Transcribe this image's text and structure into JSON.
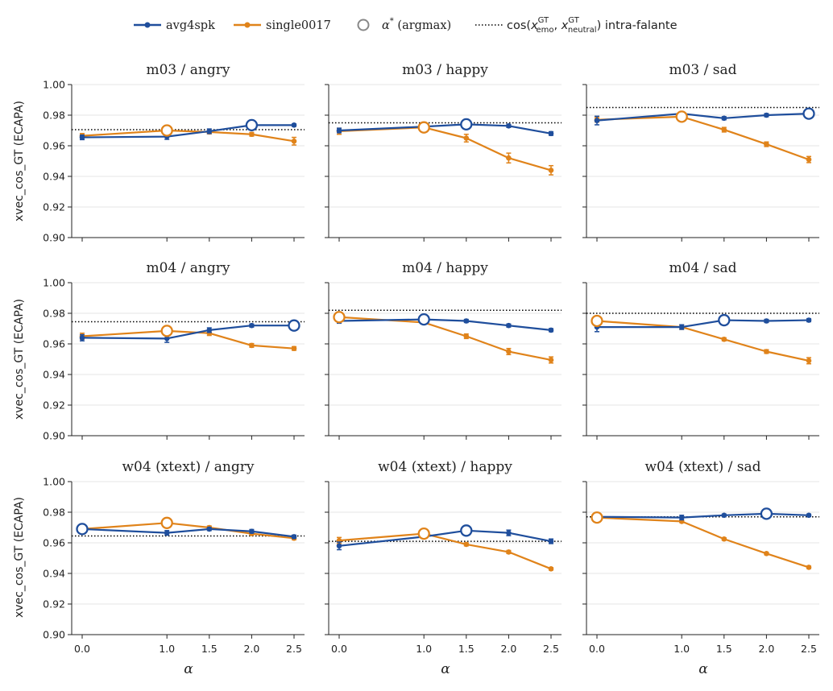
{
  "colors": {
    "avg4spk": "#1f4e9c",
    "single0017": "#e0831a",
    "argmax_legend": "#888888",
    "reference": "#000000",
    "grid": "#e6e6e6"
  },
  "legend": {
    "avg4spk": "avg4spk",
    "single0017": "single0017",
    "argmax_alpha": "α",
    "argmax_star": "*",
    "argmax_rest": " (argmax)",
    "ref_cos": "cos(",
    "ref_x1": "x",
    "ref_emo": "emo",
    "ref_gt1": "GT",
    "ref_sep": ", ",
    "ref_x2": "x",
    "ref_neutral": "neutral",
    "ref_gt2": "GT",
    "ref_end": ") intra-falante"
  },
  "chart_data": {
    "type": "line",
    "ylabel": "xvec_cos_GT (ECAPA)",
    "xlabel": "α",
    "x": [
      0.0,
      1.0,
      1.5,
      2.0,
      2.5
    ],
    "x_tick_labels": [
      "0.0",
      "1.0",
      "1.5",
      "2.0",
      "2.5"
    ],
    "ylim": [
      0.9,
      1.0
    ],
    "y_ticks": [
      0.9,
      0.92,
      0.94,
      0.96,
      0.98,
      1.0
    ],
    "y_tick_labels": [
      "0.90",
      "0.92",
      "0.94",
      "0.96",
      "0.98",
      "1.00"
    ],
    "grid": "horizontal",
    "legend_position": "top-center",
    "series_names": [
      "avg4spk",
      "single0017"
    ],
    "panels": [
      {
        "title": "m03 / angry",
        "reference": 0.9705,
        "avg4spk": [
          0.9655,
          0.966,
          0.9695,
          0.9735,
          0.9735
        ],
        "avg4spk_err": [
          0.0015,
          0.0018,
          0.0015,
          0.001,
          0.0008
        ],
        "single0017": [
          0.9665,
          0.97,
          0.969,
          0.9675,
          0.963
        ],
        "single0017_err": [
          0.0015,
          0.0012,
          0.0012,
          0.0012,
          0.0025
        ],
        "argmax": {
          "avg4spk": 3,
          "single0017": 1
        }
      },
      {
        "title": "m03 / happy",
        "reference": 0.975,
        "avg4spk": [
          0.97,
          0.9725,
          0.974,
          0.973,
          0.968
        ],
        "avg4spk_err": [
          0.0015,
          0.001,
          0.001,
          0.001,
          0.0012
        ],
        "single0017": [
          0.9695,
          0.972,
          0.965,
          0.952,
          0.944
        ],
        "single0017_err": [
          0.002,
          0.0015,
          0.0025,
          0.0032,
          0.003
        ],
        "argmax": {
          "avg4spk": 2,
          "single0017": 1
        }
      },
      {
        "title": "m03 / sad",
        "reference": 0.985,
        "avg4spk": [
          0.9765,
          0.981,
          0.978,
          0.98,
          0.981
        ],
        "avg4spk_err": [
          0.0028,
          0.001,
          0.001,
          0.001,
          0.001
        ],
        "single0017": [
          0.977,
          0.979,
          0.9705,
          0.961,
          0.951
        ],
        "single0017_err": [
          0.0015,
          0.0015,
          0.0015,
          0.0015,
          0.002
        ],
        "argmax": {
          "avg4spk": 4,
          "single0017": 1
        }
      },
      {
        "title": "m04 / angry",
        "reference": 0.9745,
        "avg4spk": [
          0.964,
          0.9635,
          0.969,
          0.972,
          0.972
        ],
        "avg4spk_err": [
          0.002,
          0.0025,
          0.0015,
          0.001,
          0.0008
        ],
        "single0017": [
          0.965,
          0.9685,
          0.967,
          0.959,
          0.957
        ],
        "single0017_err": [
          0.002,
          0.0015,
          0.0015,
          0.0012,
          0.0012
        ],
        "argmax": {
          "avg4spk": 4,
          "single0017": 1
        }
      },
      {
        "title": "m04 / happy",
        "reference": 0.982,
        "avg4spk": [
          0.975,
          0.976,
          0.975,
          0.972,
          0.969
        ],
        "avg4spk_err": [
          0.0015,
          0.001,
          0.001,
          0.001,
          0.001
        ],
        "single0017": [
          0.9775,
          0.974,
          0.965,
          0.955,
          0.9495
        ],
        "single0017_err": [
          0.001,
          0.001,
          0.0015,
          0.002,
          0.002
        ],
        "argmax": {
          "avg4spk": 1,
          "single0017": 0
        }
      },
      {
        "title": "m04 / sad",
        "reference": 0.98,
        "avg4spk": [
          0.971,
          0.971,
          0.9755,
          0.975,
          0.9755
        ],
        "avg4spk_err": [
          0.003,
          0.0015,
          0.001,
          0.001,
          0.001
        ],
        "single0017": [
          0.975,
          0.971,
          0.963,
          0.955,
          0.949
        ],
        "single0017_err": [
          0.0015,
          0.0015,
          0.001,
          0.0012,
          0.002
        ],
        "argmax": {
          "avg4spk": 2,
          "single0017": 0
        }
      },
      {
        "title": "w04 (xtext) / angry",
        "reference": 0.9645,
        "avg4spk": [
          0.969,
          0.9665,
          0.969,
          0.9675,
          0.964
        ],
        "avg4spk_err": [
          0.001,
          0.0015,
          0.001,
          0.0012,
          0.001
        ],
        "single0017": [
          0.969,
          0.973,
          0.97,
          0.966,
          0.963
        ],
        "single0017_err": [
          0.001,
          0.001,
          0.001,
          0.001,
          0.001
        ],
        "argmax": {
          "avg4spk": 0,
          "single0017": 1
        }
      },
      {
        "title": "w04 (xtext) / happy",
        "reference": 0.961,
        "avg4spk": [
          0.958,
          0.964,
          0.968,
          0.9665,
          0.961
        ],
        "avg4spk_err": [
          0.0025,
          0.001,
          0.001,
          0.0018,
          0.0015
        ],
        "single0017": [
          0.9615,
          0.966,
          0.959,
          0.954,
          0.943
        ],
        "single0017_err": [
          0.002,
          0.001,
          0.001,
          0.001,
          0.0008
        ],
        "argmax": {
          "avg4spk": 2,
          "single0017": 1
        }
      },
      {
        "title": "w04 (xtext) / sad",
        "reference": 0.977,
        "avg4spk": [
          0.977,
          0.9765,
          0.978,
          0.979,
          0.978
        ],
        "avg4spk_err": [
          0.0008,
          0.0015,
          0.0008,
          0.0008,
          0.0008
        ],
        "single0017": [
          0.9765,
          0.974,
          0.9625,
          0.953,
          0.944
        ],
        "single0017_err": [
          0.0008,
          0.0008,
          0.0008,
          0.0008,
          0.0008
        ],
        "argmax": {
          "avg4spk": 3,
          "single0017": 0
        }
      }
    ]
  }
}
